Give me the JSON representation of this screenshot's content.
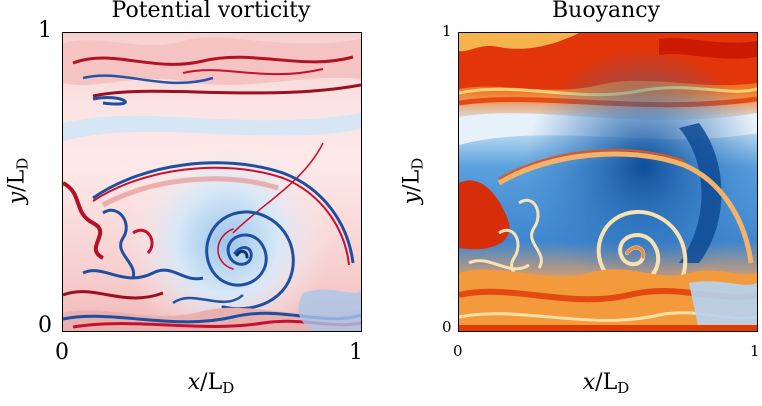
{
  "panels": [
    {
      "title": "Potential vorticity",
      "x_ticks": [
        "0",
        "1"
      ],
      "y_ticks": [
        "0",
        "1"
      ],
      "x_label_var": "x",
      "y_label_var": "y",
      "label_denom": "/L",
      "label_sub": "D",
      "colormap": "blue-white-red"
    },
    {
      "title": "Buoyancy",
      "x_ticks": [
        "0",
        "1"
      ],
      "y_ticks": [
        "0",
        "1"
      ],
      "x_label_var": "x",
      "y_label_var": "y",
      "label_denom": "/L",
      "label_sub": "D",
      "colormap": "blue-white-orange-red"
    }
  ],
  "colors": {
    "pv_red": "#c8102e",
    "pv_blue": "#1f4fa0",
    "b_red": "#e02a00",
    "b_blue": "#1a5fb4"
  }
}
